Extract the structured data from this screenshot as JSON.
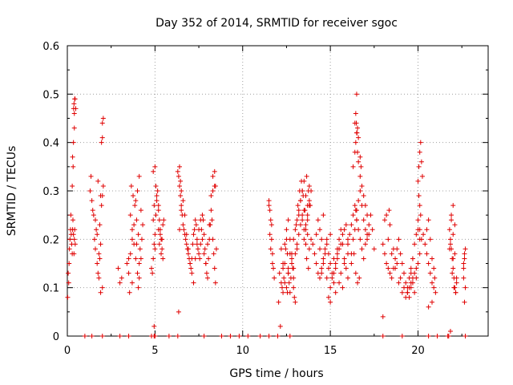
{
  "chart_data": {
    "type": "scatter",
    "title": "Day 352 of 2014, SRMTID for receiver sgoc",
    "xlabel": "GPS time / hours",
    "ylabel": "SRMTID / TECUs",
    "xlim": [
      0,
      24
    ],
    "ylim": [
      0,
      0.6
    ],
    "xticks": [
      0,
      5,
      10,
      15,
      20
    ],
    "xtick_labels": [
      "0",
      "5",
      "10",
      "15",
      "20"
    ],
    "yticks": [
      0,
      0.1,
      0.2,
      0.3,
      0.4,
      0.5,
      0.6
    ],
    "ytick_labels": [
      "0",
      "0.1",
      "0.2",
      "0.3",
      "0.4",
      "0.5",
      "0.6"
    ],
    "grid": true,
    "marker": "+",
    "color": "#e00000",
    "series": [
      {
        "name": "SRMTID",
        "x": [
          0.02,
          0.05,
          0.08,
          0.1,
          0.12,
          0.15,
          0.18,
          0.2,
          0.22,
          0.25,
          0.28,
          0.3,
          0.32,
          0.35,
          0.38,
          0.4,
          0.42,
          0.45,
          0.3,
          0.35,
          0.4,
          0.28,
          0.33,
          0.38,
          0.42,
          0.36,
          0.4,
          0.44,
          0.48,
          1.3,
          1.35,
          1.4,
          1.45,
          1.5,
          1.55,
          1.6,
          1.65,
          1.7,
          1.75,
          1.8,
          1.85,
          1.9,
          1.95,
          2.0,
          2.05,
          1.6,
          1.7,
          1.8,
          1.9,
          2.0,
          1.85,
          1.95,
          2.0,
          2.05,
          2.0,
          1.75,
          1.9,
          2.9,
          3.0,
          3.1,
          3.4,
          3.5,
          3.6,
          3.7,
          3.8,
          3.9,
          4.0,
          4.1,
          4.2,
          4.3,
          3.6,
          3.7,
          3.8,
          3.9,
          4.0,
          4.1,
          3.65,
          3.75,
          3.85,
          3.95,
          4.05,
          4.15,
          4.2,
          3.5,
          3.55,
          3.7,
          4.1,
          4.05,
          3.95,
          4.25,
          4.8,
          4.85,
          4.9,
          4.95,
          5.0,
          5.05,
          5.1,
          5.15,
          5.2,
          5.25,
          5.3,
          5.35,
          5.4,
          5.45,
          5.5,
          4.9,
          5.0,
          5.1,
          5.2,
          5.3,
          5.4,
          5.0,
          5.2,
          4.9,
          4.95,
          5.05,
          5.25,
          5.35,
          5.45,
          4.95,
          4.95,
          6.3,
          6.35,
          6.4,
          6.45,
          6.5,
          6.55,
          6.6,
          6.65,
          6.7,
          6.75,
          6.8,
          6.85,
          6.9,
          6.95,
          7.0,
          7.05,
          7.1,
          7.15,
          7.2,
          7.25,
          7.3,
          7.35,
          7.4,
          7.45,
          7.5,
          7.55,
          7.6,
          7.65,
          7.7,
          7.75,
          7.8,
          7.85,
          7.9,
          7.95,
          8.0,
          8.05,
          8.1,
          8.15,
          8.2,
          8.25,
          8.3,
          8.35,
          8.4,
          8.45,
          8.5,
          6.4,
          6.5,
          6.6,
          6.7,
          6.8,
          6.9,
          7.0,
          7.1,
          7.2,
          7.3,
          7.4,
          7.5,
          7.6,
          7.7,
          7.8,
          7.9,
          8.0,
          8.1,
          8.2,
          8.3,
          8.4,
          6.4,
          6.45,
          6.5,
          8.4,
          8.45,
          8.3,
          6.35,
          11.5,
          11.55,
          11.6,
          11.65,
          11.7,
          11.75,
          11.8,
          11.55,
          11.6,
          11.7,
          11.5,
          11.65,
          12.1,
          12.2,
          12.25,
          12.3,
          12.35,
          12.4,
          12.45,
          12.5,
          12.55,
          12.6,
          12.65,
          12.7,
          12.75,
          12.8,
          12.85,
          12.9,
          12.95,
          13.0,
          12.3,
          12.4,
          12.5,
          12.6,
          12.7,
          12.8,
          12.9,
          12.2,
          12.3,
          12.4,
          12.5,
          12.6,
          12.7,
          12.8,
          12.9,
          12.15,
          12.05,
          12.6,
          12.55,
          12.9,
          13.0,
          13.1,
          13.2,
          13.3,
          13.4,
          13.5,
          13.6,
          13.7,
          13.8,
          13.9,
          13.1,
          13.2,
          13.3,
          13.4,
          13.5,
          13.6,
          13.7,
          13.8,
          13.9,
          13.0,
          13.1,
          13.2,
          13.3,
          13.4,
          13.5,
          13.6,
          13.7,
          13.8,
          13.05,
          13.15,
          13.25,
          13.35,
          13.45,
          13.55,
          13.65,
          13.75,
          13.85,
          13.5,
          13.6,
          13.7,
          13.8,
          13.4,
          13.65,
          13.75,
          14.0,
          14.1,
          14.2,
          14.3,
          14.4,
          14.5,
          14.6,
          14.7,
          14.8,
          14.9,
          15.0,
          15.1,
          15.2,
          15.3,
          15.4,
          15.5,
          15.6,
          15.7,
          15.8,
          15.9,
          16.0,
          14.2,
          14.4,
          14.6,
          14.8,
          15.0,
          15.2,
          15.4,
          15.6,
          15.8,
          16.0,
          14.3,
          14.5,
          14.7,
          14.9,
          15.1,
          15.3,
          15.5,
          15.7,
          15.9,
          14.4,
          14.8,
          15.2,
          15.6,
          16.0,
          14.6,
          15.0,
          15.4,
          15.8,
          14.9,
          15.3,
          15.7,
          15.5,
          15.0,
          14.5,
          16.0,
          16.1,
          16.2,
          16.3,
          16.4,
          16.5,
          16.6,
          16.7,
          16.8,
          16.9,
          17.0,
          17.1,
          17.2,
          17.3,
          17.4,
          17.5,
          16.2,
          16.3,
          16.4,
          16.5,
          16.6,
          16.7,
          16.8,
          16.9,
          17.0,
          17.1,
          17.2,
          16.3,
          16.4,
          16.45,
          16.5,
          16.55,
          16.6,
          16.7,
          16.8,
          16.9,
          17.0,
          17.1,
          16.2,
          16.35,
          16.45,
          16.55,
          16.65,
          16.4,
          16.45,
          16.5,
          16.55,
          16.6,
          16.7,
          16.75,
          16.45,
          16.5,
          16.48,
          16.52,
          18.0,
          18.1,
          18.2,
          18.3,
          18.4,
          18.5,
          18.6,
          18.7,
          18.8,
          18.9,
          19.0,
          19.1,
          19.2,
          19.3,
          19.4,
          19.5,
          19.6,
          19.7,
          19.8,
          19.9,
          20.0,
          20.1,
          18.2,
          18.4,
          18.6,
          18.8,
          19.0,
          19.2,
          19.4,
          19.6,
          19.8,
          20.0,
          18.3,
          18.5,
          18.7,
          18.9,
          19.1,
          19.3,
          19.5,
          19.7,
          19.9,
          19.4,
          19.5,
          19.6,
          19.7,
          19.8,
          19.9,
          18.0,
          19.6,
          19.7,
          18.1,
          18.35,
          20.0,
          20.05,
          20.1,
          20.15,
          20.2,
          20.25,
          20.05,
          20.1,
          20.15,
          20.0,
          20.1,
          20.2,
          20.1,
          20.3,
          20.4,
          20.5,
          20.6,
          20.7,
          20.8,
          20.9,
          21.0,
          20.5,
          20.6,
          20.7,
          20.8,
          20.9,
          20.6,
          20.8,
          20.95,
          21.8,
          21.85,
          21.9,
          21.95,
          22.0,
          22.05,
          22.1,
          22.15,
          22.2,
          21.9,
          22.0,
          22.1,
          21.85,
          21.95,
          22.05,
          21.9,
          22.0,
          22.1,
          21.8,
          22.0,
          22.2,
          22.6,
          22.65,
          22.7,
          22.6,
          22.65,
          22.7,
          22.6,
          22.65,
          21.75,
          21.85,
          22.15
        ],
        "y": [
          0.08,
          0.13,
          0.11,
          0.15,
          0.18,
          0.2,
          0.22,
          0.25,
          0.21,
          0.19,
          0.17,
          0.22,
          0.24,
          0.21,
          0.17,
          0.2,
          0.22,
          0.19,
          0.37,
          0.4,
          0.43,
          0.31,
          0.35,
          0.48,
          0.49,
          0.47,
          0.46,
          0.49,
          0.47,
          0.3,
          0.33,
          0.28,
          0.26,
          0.25,
          0.2,
          0.18,
          0.22,
          0.15,
          0.13,
          0.12,
          0.16,
          0.19,
          0.27,
          0.29,
          0.31,
          0.24,
          0.21,
          0.17,
          0.09,
          0.1,
          0.23,
          0.4,
          0.44,
          0.45,
          0.41,
          0.32,
          0.29,
          0.14,
          0.11,
          0.12,
          0.15,
          0.13,
          0.17,
          0.2,
          0.23,
          0.28,
          0.3,
          0.33,
          0.26,
          0.23,
          0.25,
          0.22,
          0.19,
          0.16,
          0.13,
          0.15,
          0.31,
          0.29,
          0.27,
          0.24,
          0.21,
          0.18,
          0.16,
          0.16,
          0.09,
          0.11,
          0.12,
          0.1,
          0.19,
          0.2,
          0.14,
          0.13,
          0.16,
          0.19,
          0.21,
          0.25,
          0.28,
          0.3,
          0.27,
          0.24,
          0.22,
          0.2,
          0.18,
          0.23,
          0.24,
          0.34,
          0.35,
          0.29,
          0.26,
          0.21,
          0.2,
          0.18,
          0.22,
          0.24,
          0.27,
          0.31,
          0.19,
          0.17,
          0.16,
          0.02,
          0.0,
          0.34,
          0.33,
          0.31,
          0.29,
          0.27,
          0.25,
          0.23,
          0.22,
          0.21,
          0.2,
          0.19,
          0.18,
          0.17,
          0.16,
          0.15,
          0.14,
          0.16,
          0.19,
          0.21,
          0.22,
          0.24,
          0.23,
          0.2,
          0.18,
          0.17,
          0.16,
          0.19,
          0.22,
          0.25,
          0.24,
          0.21,
          0.18,
          0.15,
          0.13,
          0.12,
          0.16,
          0.2,
          0.23,
          0.26,
          0.24,
          0.2,
          0.17,
          0.14,
          0.11,
          0.18,
          0.22,
          0.26,
          0.28,
          0.25,
          0.21,
          0.18,
          0.15,
          0.13,
          0.11,
          0.16,
          0.19,
          0.22,
          0.24,
          0.2,
          0.17,
          0.15,
          0.19,
          0.23,
          0.29,
          0.33,
          0.31,
          0.35,
          0.32,
          0.3,
          0.34,
          0.31,
          0.3,
          0.05,
          0.28,
          0.26,
          0.24,
          0.2,
          0.17,
          0.14,
          0.12,
          0.21,
          0.18,
          0.15,
          0.27,
          0.23,
          0.13,
          0.11,
          0.1,
          0.09,
          0.12,
          0.15,
          0.18,
          0.2,
          0.17,
          0.13,
          0.11,
          0.09,
          0.12,
          0.16,
          0.14,
          0.1,
          0.08,
          0.07,
          0.15,
          0.19,
          0.22,
          0.24,
          0.2,
          0.17,
          0.14,
          0.18,
          0.14,
          0.11,
          0.1,
          0.14,
          0.17,
          0.15,
          0.12,
          0.02,
          0.07,
          0.13,
          0.09,
          0.2,
          0.22,
          0.24,
          0.26,
          0.28,
          0.3,
          0.32,
          0.29,
          0.27,
          0.31,
          0.3,
          0.18,
          0.21,
          0.23,
          0.25,
          0.22,
          0.19,
          0.24,
          0.27,
          0.2,
          0.17,
          0.19,
          0.25,
          0.28,
          0.3,
          0.26,
          0.23,
          0.21,
          0.18,
          0.23,
          0.27,
          0.3,
          0.32,
          0.29,
          0.26,
          0.33,
          0.3,
          0.27,
          0.2,
          0.22,
          0.25,
          0.28,
          0.24,
          0.16,
          0.14,
          0.19,
          0.17,
          0.15,
          0.13,
          0.12,
          0.14,
          0.16,
          0.18,
          0.2,
          0.17,
          0.15,
          0.13,
          0.11,
          0.14,
          0.17,
          0.2,
          0.22,
          0.19,
          0.16,
          0.14,
          0.12,
          0.21,
          0.18,
          0.15,
          0.12,
          0.1,
          0.13,
          0.16,
          0.19,
          0.22,
          0.2,
          0.24,
          0.2,
          0.17,
          0.14,
          0.12,
          0.15,
          0.18,
          0.21,
          0.23,
          0.22,
          0.19,
          0.16,
          0.13,
          0.17,
          0.25,
          0.21,
          0.18,
          0.15,
          0.08,
          0.09,
          0.1,
          0.11,
          0.07,
          0.13,
          0.19,
          0.21,
          0.23,
          0.25,
          0.27,
          0.24,
          0.22,
          0.2,
          0.18,
          0.16,
          0.19,
          0.21,
          0.23,
          0.25,
          0.22,
          0.18,
          0.17,
          0.2,
          0.22,
          0.26,
          0.28,
          0.3,
          0.27,
          0.24,
          0.22,
          0.2,
          0.21,
          0.35,
          0.38,
          0.4,
          0.42,
          0.38,
          0.36,
          0.33,
          0.31,
          0.29,
          0.27,
          0.25,
          0.15,
          0.17,
          0.13,
          0.11,
          0.12,
          0.44,
          0.46,
          0.5,
          0.43,
          0.41,
          0.37,
          0.35,
          0.26,
          0.24,
          0.44,
          0.42,
          0.19,
          0.17,
          0.15,
          0.14,
          0.13,
          0.12,
          0.14,
          0.16,
          0.18,
          0.2,
          0.17,
          0.15,
          0.13,
          0.11,
          0.1,
          0.12,
          0.14,
          0.16,
          0.19,
          0.21,
          0.22,
          0.2,
          0.25,
          0.23,
          0.18,
          0.15,
          0.12,
          0.1,
          0.09,
          0.11,
          0.13,
          0.15,
          0.2,
          0.17,
          0.14,
          0.11,
          0.09,
          0.08,
          0.1,
          0.12,
          0.14,
          0.09,
          0.08,
          0.1,
          0.11,
          0.09,
          0.12,
          0.04,
          0.13,
          0.16,
          0.24,
          0.26,
          0.32,
          0.35,
          0.38,
          0.4,
          0.36,
          0.33,
          0.29,
          0.27,
          0.25,
          0.24,
          0.22,
          0.2,
          0.17,
          0.21,
          0.19,
          0.17,
          0.15,
          0.13,
          0.11,
          0.1,
          0.09,
          0.22,
          0.24,
          0.2,
          0.16,
          0.14,
          0.06,
          0.07,
          0.12,
          0.22,
          0.2,
          0.18,
          0.16,
          0.14,
          0.12,
          0.1,
          0.09,
          0.11,
          0.24,
          0.21,
          0.17,
          0.19,
          0.13,
          0.1,
          0.25,
          0.27,
          0.23,
          0.18,
          0.16,
          0.12,
          0.14,
          0.16,
          0.18,
          0.12,
          0.07,
          0.1,
          0.15,
          0.17,
          0.0,
          0.01,
          0.09
        ]
      }
    ],
    "baseline_x": [
      1.0,
      1.4,
      2.0,
      3.0,
      3.5,
      4.8,
      5.0,
      5.8,
      6.3,
      7.8,
      8.8,
      9.3,
      9.8,
      10.3,
      11.0,
      11.5,
      12.0,
      12.7,
      18.0,
      19.1,
      20.6,
      21.1,
      21.7,
      22.7
    ]
  }
}
